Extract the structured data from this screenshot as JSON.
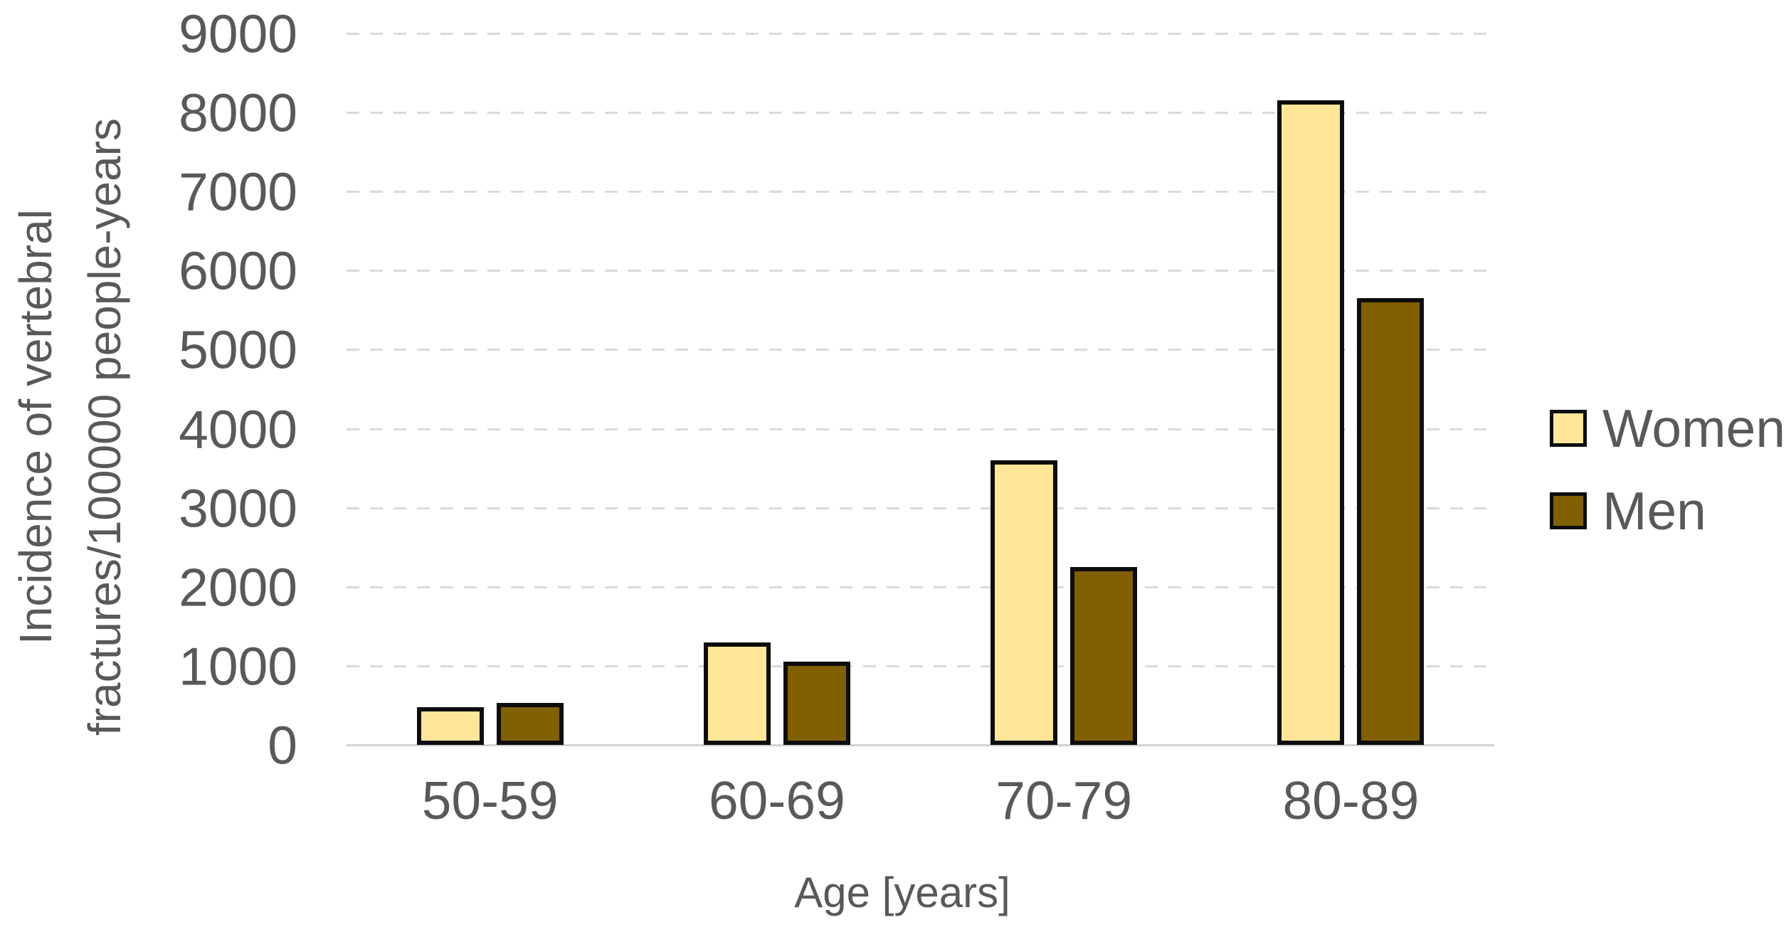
{
  "chart_data": {
    "type": "bar",
    "title": "",
    "categories": [
      "50-59",
      "60-69",
      "70-79",
      "80-89"
    ],
    "series": [
      {
        "name": "Women",
        "color": "#FFE699",
        "border_color": "#0D0D0D",
        "values": [
          480,
          1300,
          3600,
          8150
        ]
      },
      {
        "name": "Men",
        "color": "#806000",
        "border_color": "#0D0D0D",
        "values": [
          530,
          1050,
          2250,
          5650
        ]
      }
    ],
    "xlabel": "Age [years]",
    "ylabel": "Incidence of vertebral fractures/100000 people-years",
    "ylabel_lines": [
      "Incidence of vertebral",
      "fractures/100000 people-years"
    ],
    "ylim": [
      0,
      9000
    ],
    "ytick_step": 1000,
    "ytick_labels": [
      "0",
      "1000",
      "2000",
      "3000",
      "4000",
      "5000",
      "6000",
      "7000",
      "8000",
      "9000"
    ],
    "grid": "horizontal dashed gridlines on",
    "legend_position": "right"
  },
  "colors": {
    "text": "#595959",
    "gridline": "#DADADA",
    "axis_line": "#D2D2D2",
    "bar_border": "#0D0D0D",
    "background": "#FFFFFF"
  }
}
